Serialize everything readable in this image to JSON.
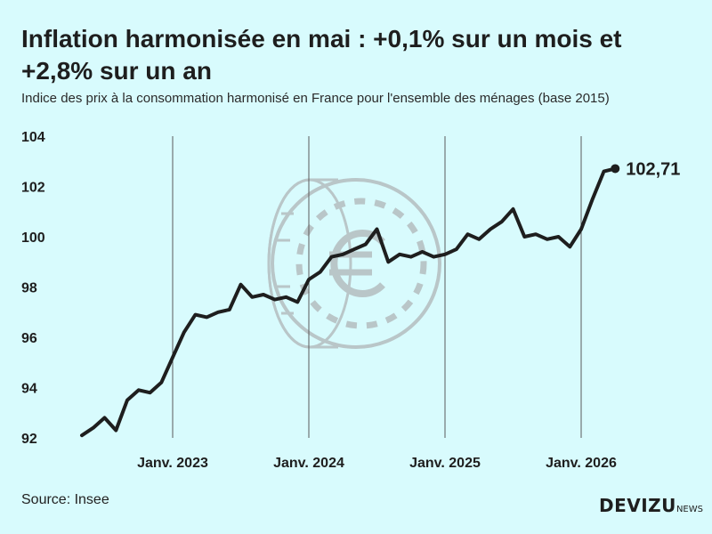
{
  "title": "Inflation harmonisée en mai : +0,1% sur un mois et +2,8% sur un an",
  "subtitle": "Indice des prix à la consommation harmonisé en France pour l'ensemble des ménages (base 2015)",
  "source": "Source: Insee",
  "logo": {
    "brand": "DEVIZU",
    "suffix": "NEWS",
    "icon": "euro-coin-icon"
  },
  "colors": {
    "background": "#d8fbfd",
    "line": "#1e1e1e",
    "watermark": "#b9c6c8"
  },
  "chart_data": {
    "type": "line",
    "x_ticks": [
      "Janv. 2023",
      "Janv. 2024",
      "Janv. 2025",
      "Janv. 2026"
    ],
    "y_ticks": [
      "92",
      "94",
      "96",
      "98",
      "100",
      "102",
      "104"
    ],
    "ylim": [
      92,
      104
    ],
    "grid": "vertical lines at each January",
    "start": "2022-05",
    "values": [
      92.1,
      92.4,
      92.8,
      92.3,
      93.5,
      93.9,
      93.8,
      94.2,
      95.2,
      96.2,
      96.9,
      96.8,
      97.0,
      97.1,
      98.1,
      97.6,
      97.7,
      97.5,
      97.6,
      97.4,
      98.3,
      98.6,
      99.2,
      99.3,
      99.5,
      99.7,
      100.3,
      99.0,
      99.3,
      99.2,
      99.4,
      99.2,
      99.3,
      99.5,
      100.1,
      99.9,
      100.3,
      100.6,
      101.1,
      100.0,
      100.1,
      99.9,
      100.0,
      99.6,
      100.3,
      101.5,
      102.6,
      102.71
    ],
    "last_value_label": "102,71"
  }
}
